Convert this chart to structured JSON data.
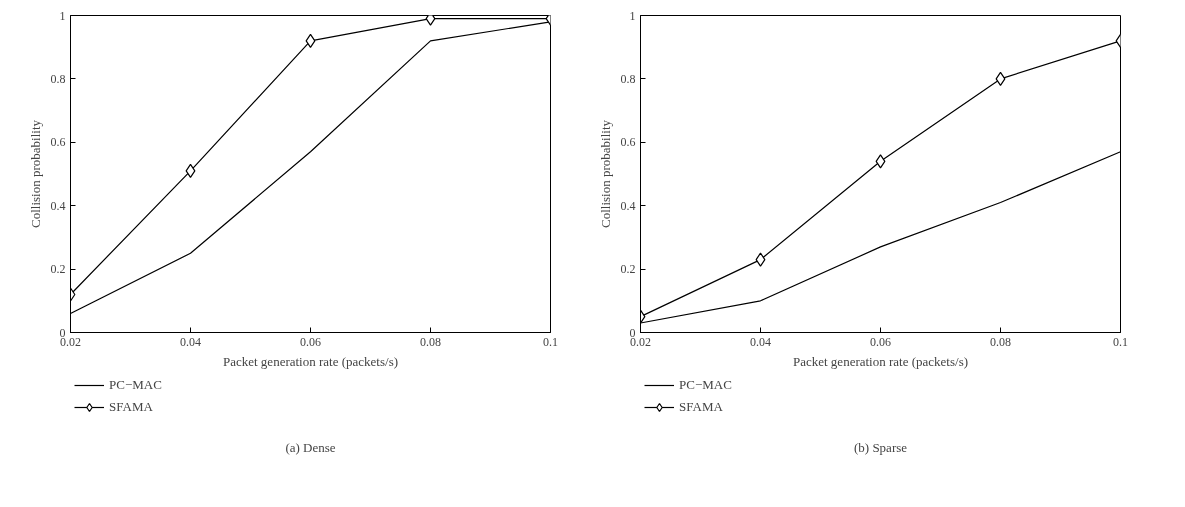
{
  "chart_data": [
    {
      "type": "line",
      "xlabel": "Packet generation rate (packets/s)",
      "ylabel": "Collision probability",
      "annotations": [
        "(a) Dense"
      ],
      "x": [
        0.02,
        0.04,
        0.06,
        0.08,
        0.1
      ],
      "xlim": [
        0.02,
        0.1
      ],
      "xticks": [
        0.02,
        0.04,
        0.06,
        0.08,
        0.1
      ],
      "ylim": [
        0,
        1
      ],
      "yticks": [
        0,
        0.2,
        0.4,
        0.6,
        0.8,
        1
      ],
      "grid": false,
      "legend": "bottom left",
      "series": [
        {
          "name": "PC−MAC",
          "color": "#000000",
          "marker": "none",
          "values": [
            0.06,
            0.25,
            0.57,
            0.92,
            0.98
          ]
        },
        {
          "name": "SFAMA",
          "color": "#000000",
          "marker": "diamond",
          "values": [
            0.12,
            0.51,
            0.92,
            0.99,
            0.99
          ]
        }
      ]
    },
    {
      "type": "line",
      "xlabel": "Packet generation rate (packets/s)",
      "ylabel": "Collision probability",
      "annotations": [
        "(b) Sparse"
      ],
      "x": [
        0.02,
        0.04,
        0.06,
        0.08,
        0.1
      ],
      "xlim": [
        0.02,
        0.1
      ],
      "xticks": [
        0.02,
        0.04,
        0.06,
        0.08,
        0.1
      ],
      "ylim": [
        0,
        1
      ],
      "yticks": [
        0,
        0.2,
        0.4,
        0.6,
        0.8,
        1
      ],
      "grid": false,
      "legend": "bottom left",
      "series": [
        {
          "name": "PC−MAC",
          "color": "#000000",
          "marker": "none",
          "values": [
            0.03,
            0.1,
            0.27,
            0.41,
            0.57
          ]
        },
        {
          "name": "SFAMA",
          "color": "#000000",
          "marker": "diamond",
          "values": [
            0.05,
            0.23,
            0.54,
            0.8,
            0.92
          ]
        }
      ]
    }
  ]
}
